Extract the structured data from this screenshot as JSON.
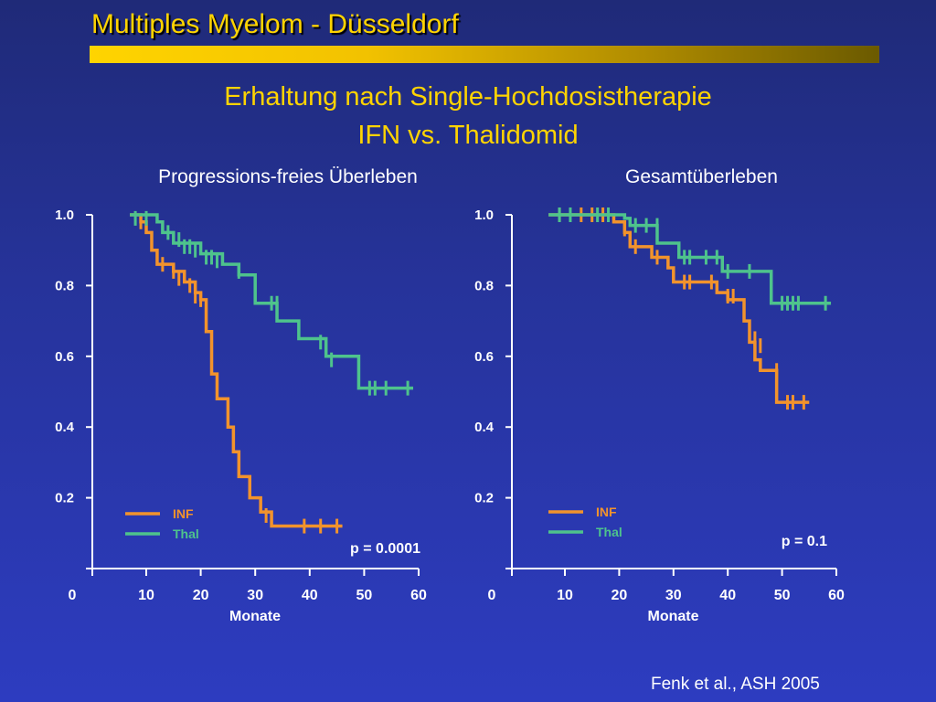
{
  "header": {
    "title": "Multiples Myelom - Düsseldorf",
    "bar_color_start": "#ffd400",
    "bar_color_end": "#6b5a00"
  },
  "headline": {
    "line1": "Erhaltung nach Single-Hochdosistherapie",
    "line2": "IFN vs. Thalidomid"
  },
  "citation": "Fenk et al., ASH 2005",
  "colors": {
    "INF": "#f2932c",
    "Thal": "#4ec38c",
    "axis": "#ffffff",
    "background": "#26339a"
  },
  "chart_data": [
    {
      "type": "line",
      "step": true,
      "title": "Progressions-freies Überleben",
      "xlabel": "Monate",
      "ylabel": "",
      "xlim": [
        0,
        60
      ],
      "ylim": [
        0,
        1.0
      ],
      "x_ticks": [
        "0",
        "10",
        "20",
        "30",
        "40",
        "50",
        "60"
      ],
      "y_ticks": [
        "1.0",
        "0.8",
        "0.6",
        "0.4",
        "0.2"
      ],
      "annotation": "p = 0.0001",
      "legend": {
        "position": "bottom-left",
        "entries": [
          "INF",
          "Thal"
        ]
      },
      "series": [
        {
          "name": "INF",
          "color": "#f2932c",
          "points": [
            [
              7,
              1.0
            ],
            [
              9,
              0.98
            ],
            [
              10,
              0.95
            ],
            [
              11,
              0.9
            ],
            [
              12,
              0.86
            ],
            [
              15,
              0.84
            ],
            [
              17,
              0.81
            ],
            [
              19,
              0.78
            ],
            [
              20,
              0.76
            ],
            [
              21,
              0.67
            ],
            [
              22,
              0.55
            ],
            [
              23,
              0.48
            ],
            [
              25,
              0.4
            ],
            [
              26,
              0.33
            ],
            [
              27,
              0.26
            ],
            [
              29,
              0.2
            ],
            [
              31,
              0.16
            ],
            [
              33,
              0.12
            ],
            [
              46,
              0.12
            ]
          ],
          "censored": [
            [
              9,
              0.98
            ],
            [
              13,
              0.86
            ],
            [
              15,
              0.84
            ],
            [
              16,
              0.82
            ],
            [
              18,
              0.8
            ],
            [
              19,
              0.77
            ],
            [
              20,
              0.76
            ],
            [
              32,
              0.15
            ],
            [
              39,
              0.12
            ],
            [
              42,
              0.12
            ],
            [
              45,
              0.12
            ]
          ]
        },
        {
          "name": "Thal",
          "color": "#4ec38c",
          "points": [
            [
              7,
              1.0
            ],
            [
              12,
              0.98
            ],
            [
              13,
              0.95
            ],
            [
              15,
              0.92
            ],
            [
              20,
              0.89
            ],
            [
              24,
              0.86
            ],
            [
              27,
              0.83
            ],
            [
              30,
              0.75
            ],
            [
              34,
              0.7
            ],
            [
              38,
              0.65
            ],
            [
              43,
              0.6
            ],
            [
              49,
              0.51
            ],
            [
              59,
              0.51
            ]
          ],
          "censored": [
            [
              8,
              0.99
            ],
            [
              10,
              0.99
            ],
            [
              14,
              0.95
            ],
            [
              16,
              0.93
            ],
            [
              17,
              0.91
            ],
            [
              18,
              0.91
            ],
            [
              19,
              0.9
            ],
            [
              21,
              0.88
            ],
            [
              22,
              0.88
            ],
            [
              23,
              0.87
            ],
            [
              27,
              0.84
            ],
            [
              33,
              0.75
            ],
            [
              34,
              0.75
            ],
            [
              42,
              0.64
            ],
            [
              44,
              0.59
            ],
            [
              51,
              0.51
            ],
            [
              52,
              0.51
            ],
            [
              54,
              0.51
            ],
            [
              58,
              0.51
            ]
          ]
        }
      ]
    },
    {
      "type": "line",
      "step": true,
      "title": "Gesamtüberleben",
      "xlabel": "Monate",
      "ylabel": "",
      "xlim": [
        0,
        60
      ],
      "ylim": [
        0,
        1.0
      ],
      "x_ticks": [
        "0",
        "10",
        "20",
        "30",
        "40",
        "50",
        "60"
      ],
      "y_ticks": [
        "1.0",
        "0.8",
        "0.6",
        "0.4",
        "0.2"
      ],
      "annotation": "p = 0.1",
      "legend": {
        "position": "bottom-left",
        "entries": [
          "INF",
          "Thal"
        ]
      },
      "series": [
        {
          "name": "INF",
          "color": "#f2932c",
          "points": [
            [
              7,
              1.0
            ],
            [
              19,
              0.98
            ],
            [
              21,
              0.95
            ],
            [
              22,
              0.91
            ],
            [
              26,
              0.88
            ],
            [
              29,
              0.85
            ],
            [
              30,
              0.81
            ],
            [
              38,
              0.78
            ],
            [
              40,
              0.76
            ],
            [
              43,
              0.7
            ],
            [
              44,
              0.64
            ],
            [
              45,
              0.59
            ],
            [
              46,
              0.56
            ],
            [
              49,
              0.5
            ],
            [
              49,
              0.47
            ],
            [
              55,
              0.47
            ]
          ],
          "censored": [
            [
              9,
              1.0
            ],
            [
              13,
              1.0
            ],
            [
              15,
              1.0
            ],
            [
              17,
              1.0
            ],
            [
              21,
              0.96
            ],
            [
              23,
              0.91
            ],
            [
              27,
              0.88
            ],
            [
              32,
              0.81
            ],
            [
              33,
              0.81
            ],
            [
              37,
              0.81
            ],
            [
              40,
              0.77
            ],
            [
              41,
              0.77
            ],
            [
              45,
              0.65
            ],
            [
              46,
              0.63
            ],
            [
              49,
              0.56
            ],
            [
              51,
              0.47
            ],
            [
              52,
              0.47
            ],
            [
              54,
              0.47
            ]
          ]
        },
        {
          "name": "Thal",
          "color": "#4ec38c",
          "points": [
            [
              7,
              1.0
            ],
            [
              21,
              0.99
            ],
            [
              22,
              0.97
            ],
            [
              27,
              0.92
            ],
            [
              31,
              0.88
            ],
            [
              39,
              0.84
            ],
            [
              48,
              0.8
            ],
            [
              48,
              0.75
            ],
            [
              59,
              0.75
            ]
          ],
          "censored": [
            [
              9,
              1.0
            ],
            [
              11,
              1.0
            ],
            [
              16,
              1.0
            ],
            [
              18,
              1.0
            ],
            [
              23,
              0.97
            ],
            [
              25,
              0.97
            ],
            [
              27,
              0.97
            ],
            [
              32,
              0.88
            ],
            [
              33,
              0.88
            ],
            [
              36,
              0.88
            ],
            [
              38,
              0.88
            ],
            [
              40,
              0.84
            ],
            [
              44,
              0.84
            ],
            [
              50,
              0.75
            ],
            [
              51,
              0.75
            ],
            [
              52,
              0.75
            ],
            [
              53,
              0.75
            ],
            [
              58,
              0.75
            ]
          ]
        }
      ]
    }
  ]
}
